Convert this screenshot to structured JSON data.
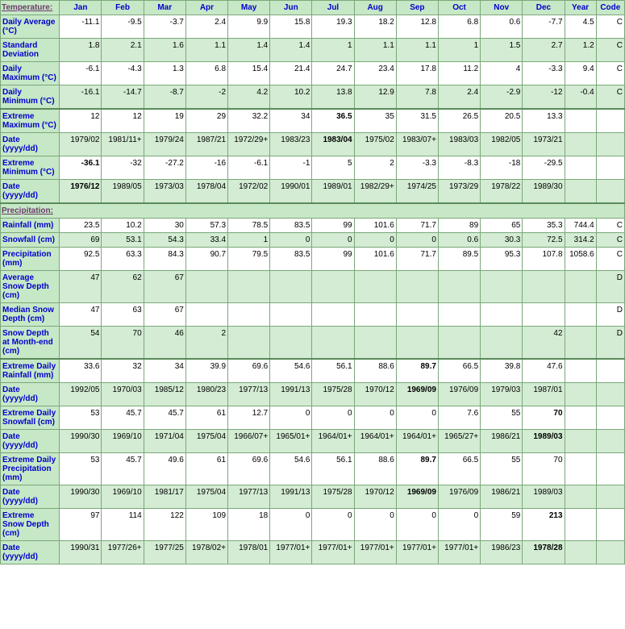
{
  "headers": {
    "temperature": "Temperature:",
    "precipitation": "Precipitation:",
    "months": [
      "Jan",
      "Feb",
      "Mar",
      "Apr",
      "May",
      "Jun",
      "Jul",
      "Aug",
      "Sep",
      "Oct",
      "Nov",
      "Dec"
    ],
    "year": "Year",
    "code": "Code"
  },
  "temperature": [
    {
      "label": "Daily Average (°C)",
      "alt": false,
      "vals": [
        "-11.1",
        "-9.5",
        "-3.7",
        "2.4",
        "9.9",
        "15.8",
        "19.3",
        "18.2",
        "12.8",
        "6.8",
        "0.6",
        "-7.7"
      ],
      "year": "4.5",
      "code": "C"
    },
    {
      "label": "Standard Deviation",
      "alt": true,
      "vals": [
        "1.8",
        "2.1",
        "1.6",
        "1.1",
        "1.4",
        "1.4",
        "1",
        "1.1",
        "1.1",
        "1",
        "1.5",
        "2.7"
      ],
      "year": "1.2",
      "code": "C"
    },
    {
      "label": "Daily Maximum (°C)",
      "alt": false,
      "vals": [
        "-6.1",
        "-4.3",
        "1.3",
        "6.8",
        "15.4",
        "21.4",
        "24.7",
        "23.4",
        "17.8",
        "11.2",
        "4",
        "-3.3"
      ],
      "year": "9.4",
      "code": "C"
    },
    {
      "label": "Daily Minimum (°C)",
      "alt": true,
      "vals": [
        "-16.1",
        "-14.7",
        "-8.7",
        "-2",
        "4.2",
        "10.2",
        "13.8",
        "12.9",
        "7.8",
        "2.4",
        "-2.9",
        "-12"
      ],
      "year": "-0.4",
      "code": "C"
    },
    {
      "label": "Extreme Maximum (°C)",
      "alt": false,
      "thick": true,
      "vals": [
        "12",
        "12",
        "19",
        "29",
        "32.2",
        "34",
        "36.5",
        "35",
        "31.5",
        "26.5",
        "20.5",
        "13.3"
      ],
      "year": "",
      "code": "",
      "bold": [
        6
      ]
    },
    {
      "label": "Date (yyyy/dd)",
      "alt": true,
      "vals": [
        "1979/02",
        "1981/11+",
        "1979/24",
        "1987/21",
        "1972/29+",
        "1983/23",
        "1983/04",
        "1975/02",
        "1983/07+",
        "1983/03",
        "1982/05",
        "1973/21"
      ],
      "year": "",
      "code": "",
      "bold": [
        6
      ]
    },
    {
      "label": "Extreme Minimum (°C)",
      "alt": false,
      "vals": [
        "-36.1",
        "-32",
        "-27.2",
        "-16",
        "-6.1",
        "-1",
        "5",
        "2",
        "-3.3",
        "-8.3",
        "-18",
        "-29.5"
      ],
      "year": "",
      "code": "",
      "bold": [
        0
      ]
    },
    {
      "label": "Date (yyyy/dd)",
      "alt": true,
      "vals": [
        "1976/12",
        "1989/05",
        "1973/03",
        "1978/04",
        "1972/02",
        "1990/01",
        "1989/01",
        "1982/29+",
        "1974/25",
        "1973/29",
        "1978/22",
        "1989/30"
      ],
      "year": "",
      "code": "",
      "bold": [
        0
      ]
    }
  ],
  "precipitation": [
    {
      "label": "Rainfall (mm)",
      "alt": false,
      "vals": [
        "23.5",
        "10.2",
        "30",
        "57.3",
        "78.5",
        "83.5",
        "99",
        "101.6",
        "71.7",
        "89",
        "65",
        "35.3"
      ],
      "year": "744.4",
      "code": "C"
    },
    {
      "label": "Snowfall (cm)",
      "alt": true,
      "vals": [
        "69",
        "53.1",
        "54.3",
        "33.4",
        "1",
        "0",
        "0",
        "0",
        "0",
        "0.6",
        "30.3",
        "72.5"
      ],
      "year": "314.2",
      "code": "C"
    },
    {
      "label": "Precipitation (mm)",
      "alt": false,
      "vals": [
        "92.5",
        "63.3",
        "84.3",
        "90.7",
        "79.5",
        "83.5",
        "99",
        "101.6",
        "71.7",
        "89.5",
        "95.3",
        "107.8"
      ],
      "year": "1058.6",
      "code": "C"
    },
    {
      "label": "Average Snow Depth (cm)",
      "alt": true,
      "vals": [
        "47",
        "62",
        "67",
        "",
        "",
        "",
        "",
        "",
        "",
        "",
        "",
        ""
      ],
      "year": "",
      "code": "D"
    },
    {
      "label": "Median Snow Depth (cm)",
      "alt": false,
      "vals": [
        "47",
        "63",
        "67",
        "",
        "",
        "",
        "",
        "",
        "",
        "",
        "",
        ""
      ],
      "year": "",
      "code": "D"
    },
    {
      "label": "Snow Depth at Month-end (cm)",
      "alt": true,
      "vals": [
        "54",
        "70",
        "46",
        "2",
        "",
        "",
        "",
        "",
        "",
        "",
        "",
        "42"
      ],
      "year": "",
      "code": "D"
    },
    {
      "label": "Extreme Daily Rainfall (mm)",
      "alt": false,
      "thick": true,
      "vals": [
        "33.6",
        "32",
        "34",
        "39.9",
        "69.6",
        "54.6",
        "56.1",
        "88.6",
        "89.7",
        "66.5",
        "39.8",
        "47.6"
      ],
      "year": "",
      "code": "",
      "bold": [
        8
      ]
    },
    {
      "label": "Date (yyyy/dd)",
      "alt": true,
      "vals": [
        "1992/05",
        "1970/03",
        "1985/12",
        "1980/23",
        "1977/13",
        "1991/13",
        "1975/28",
        "1970/12",
        "1969/09",
        "1976/09",
        "1979/03",
        "1987/01"
      ],
      "year": "",
      "code": "",
      "bold": [
        8
      ]
    },
    {
      "label": "Extreme Daily Snowfall (cm)",
      "alt": false,
      "vals": [
        "53",
        "45.7",
        "45.7",
        "61",
        "12.7",
        "0",
        "0",
        "0",
        "0",
        "7.6",
        "55",
        "70"
      ],
      "year": "",
      "code": "",
      "bold": [
        11
      ]
    },
    {
      "label": "Date (yyyy/dd)",
      "alt": true,
      "vals": [
        "1990/30",
        "1969/10",
        "1971/04",
        "1975/04",
        "1966/07+",
        "1965/01+",
        "1964/01+",
        "1964/01+",
        "1964/01+",
        "1965/27+",
        "1986/21",
        "1989/03"
      ],
      "year": "",
      "code": "",
      "bold": [
        11
      ]
    },
    {
      "label": "Extreme Daily Precipitation (mm)",
      "alt": false,
      "vals": [
        "53",
        "45.7",
        "49.6",
        "61",
        "69.6",
        "54.6",
        "56.1",
        "88.6",
        "89.7",
        "66.5",
        "55",
        "70"
      ],
      "year": "",
      "code": "",
      "bold": [
        8
      ]
    },
    {
      "label": "Date (yyyy/dd)",
      "alt": true,
      "vals": [
        "1990/30",
        "1969/10",
        "1981/17",
        "1975/04",
        "1977/13",
        "1991/13",
        "1975/28",
        "1970/12",
        "1969/09",
        "1976/09",
        "1986/21",
        "1989/03"
      ],
      "year": "",
      "code": "",
      "bold": [
        8
      ]
    },
    {
      "label": "Extreme Snow Depth (cm)",
      "alt": false,
      "vals": [
        "97",
        "114",
        "122",
        "109",
        "18",
        "0",
        "0",
        "0",
        "0",
        "0",
        "59",
        "213"
      ],
      "year": "",
      "code": "",
      "bold": [
        11
      ]
    },
    {
      "label": "Date (yyyy/dd)",
      "alt": true,
      "vals": [
        "1990/31",
        "1977/26+",
        "1977/25",
        "1978/02+",
        "1978/01",
        "1977/01+",
        "1977/01+",
        "1977/01+",
        "1977/01+",
        "1977/01+",
        "1986/23",
        "1978/28"
      ],
      "year": "",
      "code": "",
      "bold": [
        11
      ]
    }
  ]
}
